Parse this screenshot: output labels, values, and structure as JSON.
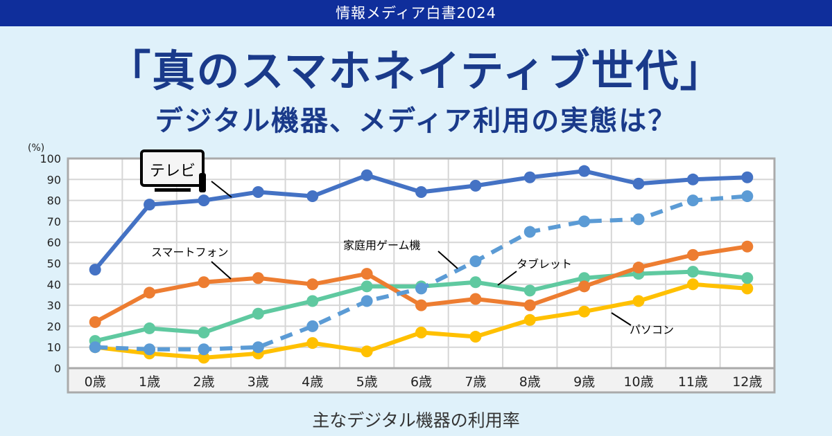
{
  "banner": "情報メディア白書2024",
  "title": "「真のスマホネイティブ世代」",
  "subtitle": "デジタル機器、メディア利用の実態は？",
  "chart_data": {
    "type": "line",
    "title": "主なデジタル機器の利用率",
    "ylabel": "(%)",
    "ylim": [
      0,
      100
    ],
    "yticks": [
      0,
      10,
      20,
      30,
      40,
      50,
      60,
      70,
      80,
      90,
      100
    ],
    "grid": true,
    "categories": [
      "0歳",
      "1歳",
      "2歳",
      "3歳",
      "4歳",
      "5歳",
      "6歳",
      "7歳",
      "8歳",
      "9歳",
      "10歳",
      "11歳",
      "12歳"
    ],
    "series": [
      {
        "name": "テレビ",
        "color": "#4472c4",
        "dashed": false,
        "values": [
          47,
          78,
          80,
          84,
          82,
          92,
          84,
          87,
          91,
          94,
          88,
          90,
          91
        ]
      },
      {
        "name": "家庭用ゲーム機",
        "color": "#5b9bd5",
        "dashed": true,
        "values": [
          10,
          9,
          9,
          10,
          20,
          32,
          38,
          51,
          65,
          70,
          71,
          80,
          82
        ]
      },
      {
        "name": "スマートフォン",
        "color": "#ed7d31",
        "dashed": false,
        "values": [
          22,
          36,
          41,
          43,
          40,
          45,
          30,
          33,
          30,
          39,
          48,
          54,
          58
        ]
      },
      {
        "name": "タブレット",
        "color": "#5fc9a0",
        "dashed": false,
        "values": [
          13,
          19,
          17,
          26,
          32,
          39,
          39,
          41,
          37,
          43,
          45,
          46,
          43
        ]
      },
      {
        "name": "パソコン",
        "color": "#ffc000",
        "dashed": false,
        "values": [
          10,
          7,
          5,
          7,
          12,
          8,
          17,
          15,
          23,
          27,
          32,
          40,
          38
        ]
      }
    ]
  }
}
